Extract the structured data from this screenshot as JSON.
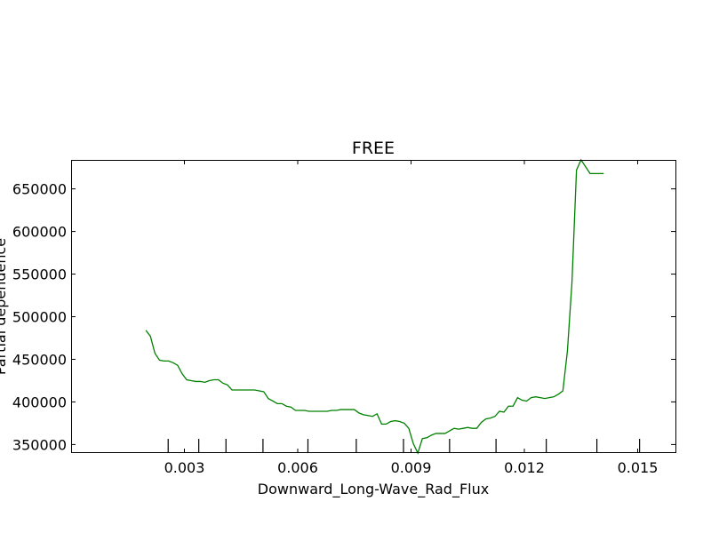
{
  "chart_data": {
    "type": "line",
    "title": "FREE",
    "xlabel": "Downward_Long-Wave_Rad_Flux",
    "ylabel": "Partial dependence",
    "xlim": [
      0.0,
      0.016
    ],
    "ylim": [
      340000,
      684000
    ],
    "x_ticks": [
      0.003,
      0.006,
      0.009,
      0.012,
      0.015
    ],
    "x_tick_labels": [
      "0.003",
      "0.006",
      "0.009",
      "0.012",
      "0.015"
    ],
    "y_ticks": [
      350000,
      400000,
      450000,
      500000,
      550000,
      600000,
      650000
    ],
    "y_tick_labels": [
      "350000",
      "400000",
      "450000",
      "500000",
      "550000",
      "600000",
      "650000"
    ],
    "rug_x": [
      0.00257,
      0.00338,
      0.0041,
      0.00508,
      0.00627,
      0.00755,
      0.0088,
      0.01002,
      0.01125,
      0.01258,
      0.01392,
      0.01505
    ],
    "colors": {
      "line": "#008000",
      "axis": "#000000"
    },
    "series": [
      {
        "x": [
          0.00198,
          0.0021,
          0.00222,
          0.00234,
          0.00246,
          0.00258,
          0.0027,
          0.00282,
          0.00294,
          0.00306,
          0.00318,
          0.0033,
          0.00342,
          0.00354,
          0.00366,
          0.00378,
          0.0039,
          0.00402,
          0.00414,
          0.00426,
          0.00438,
          0.0045,
          0.00462,
          0.00474,
          0.00486,
          0.00498,
          0.0051,
          0.00522,
          0.00534,
          0.00546,
          0.00558,
          0.0057,
          0.00582,
          0.00594,
          0.00606,
          0.00618,
          0.0063,
          0.00642,
          0.00654,
          0.00666,
          0.00678,
          0.0069,
          0.00702,
          0.00714,
          0.00726,
          0.00738,
          0.0075,
          0.00762,
          0.00774,
          0.00786,
          0.00798,
          0.0081,
          0.00822,
          0.00834,
          0.00846,
          0.00858,
          0.0087,
          0.00882,
          0.00894,
          0.00906,
          0.00918,
          0.0093,
          0.00942,
          0.00954,
          0.00966,
          0.00978,
          0.0099,
          0.01002,
          0.01014,
          0.01026,
          0.01038,
          0.0105,
          0.01062,
          0.01074,
          0.01086,
          0.01098,
          0.0111,
          0.01122,
          0.01134,
          0.01146,
          0.01158,
          0.0117,
          0.01182,
          0.01194,
          0.01206,
          0.01218,
          0.0123,
          0.01242,
          0.01254,
          0.01266,
          0.01278,
          0.0129,
          0.01302,
          0.01314,
          0.01326,
          0.01338,
          0.0135,
          0.01362,
          0.01374,
          0.01386,
          0.01398,
          0.0141
        ],
        "values": [
          484000,
          477000,
          457000,
          449000,
          448000,
          448000,
          446000,
          443000,
          433000,
          426000,
          425000,
          424000,
          424000,
          423000,
          425000,
          426000,
          426000,
          422000,
          420000,
          414000,
          414000,
          414000,
          414000,
          414000,
          414000,
          413000,
          412000,
          404000,
          401000,
          398000,
          398000,
          395000,
          394000,
          390000,
          390000,
          390000,
          389000,
          389000,
          389000,
          389000,
          389000,
          390000,
          390000,
          391000,
          391000,
          391000,
          391000,
          387000,
          385000,
          384000,
          383000,
          386000,
          374000,
          374000,
          377000,
          378000,
          377000,
          375000,
          369000,
          351000,
          340000,
          357000,
          358000,
          361000,
          363000,
          363000,
          363000,
          366000,
          369000,
          368000,
          369000,
          370000,
          369000,
          369000,
          376000,
          380000,
          381000,
          383000,
          389000,
          388000,
          395000,
          395000,
          405000,
          402000,
          401000,
          405000,
          406000,
          405000,
          404000,
          405000,
          406000,
          409000,
          413000,
          460000,
          540000,
          672000,
          684000,
          676000,
          668000,
          668000,
          668000,
          668000
        ]
      }
    ]
  }
}
